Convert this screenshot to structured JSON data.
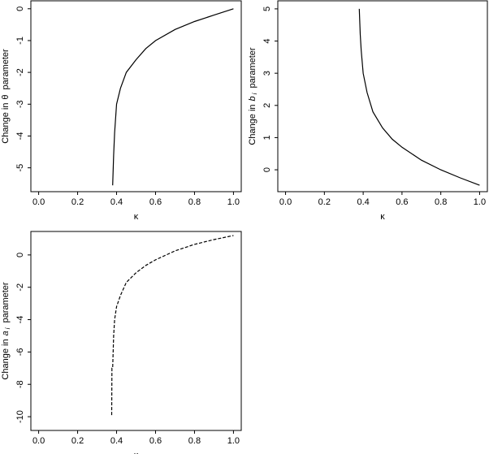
{
  "chart_data": [
    {
      "type": "line",
      "xlabel": "κ",
      "ylabel": {
        "prefix": "Change in",
        "symbol": "θ",
        "suffix": "parameter"
      },
      "x": [
        0.38,
        0.385,
        0.39,
        0.4,
        0.42,
        0.45,
        0.5,
        0.55,
        0.6,
        0.7,
        0.8,
        0.9,
        1.0
      ],
      "values": [
        -5.55,
        -4.6,
        -3.9,
        -3.0,
        -2.5,
        -2.0,
        -1.6,
        -1.25,
        -1.0,
        -0.65,
        -0.4,
        -0.2,
        0
      ],
      "color": "#000000",
      "linestyle": "solid",
      "xlim": [
        -0.04,
        1.04
      ],
      "xticks": [
        {
          "value": 0,
          "label": "0.0"
        },
        0.2,
        0.4,
        0.6,
        0.8,
        {
          "value": 1,
          "label": "1.0"
        }
      ],
      "ylim": [
        -5.75,
        0.25
      ],
      "yticks": [
        -5,
        -4,
        -3,
        -2,
        -1,
        0
      ]
    },
    {
      "type": "line",
      "xlabel": "κ",
      "ylabel": {
        "prefix": "Change in",
        "symbol": "b",
        "subscript": "i",
        "suffix": "parameter"
      },
      "x": [
        0.38,
        0.385,
        0.39,
        0.4,
        0.42,
        0.45,
        0.5,
        0.55,
        0.6,
        0.7,
        0.8,
        0.9,
        1.0
      ],
      "values": [
        5.0,
        4.2,
        3.7,
        3.0,
        2.4,
        1.8,
        1.3,
        0.95,
        0.7,
        0.3,
        0.0,
        -0.25,
        -0.48
      ],
      "color": "#000000",
      "linestyle": "solid",
      "xlim": [
        -0.04,
        1.04
      ],
      "xticks": [
        {
          "value": 0,
          "label": "0.0"
        },
        0.2,
        0.4,
        0.6,
        0.8,
        {
          "value": 1,
          "label": "1.0"
        }
      ],
      "ylim": [
        -0.68,
        5.25
      ],
      "yticks": [
        0,
        1,
        2,
        3,
        4,
        5
      ]
    },
    {
      "type": "line",
      "xlabel": "κ",
      "ylabel": {
        "prefix": "Change in",
        "symbol": "a",
        "subscript": "i",
        "suffix": "parameter"
      },
      "x": [
        0.375,
        0.376,
        0.38,
        0.385,
        0.39,
        0.4,
        0.42,
        0.45,
        0.5,
        0.55,
        0.6,
        0.7,
        0.8,
        0.9,
        1.0
      ],
      "values": [
        -9.9,
        -7,
        -7,
        -5,
        -4,
        -3.2,
        -2.5,
        -1.7,
        -1.1,
        -0.65,
        -0.3,
        0.25,
        0.65,
        0.95,
        1.2
      ],
      "color": "#000000",
      "linestyle": "dashed",
      "xlim": [
        -0.04,
        1.04
      ],
      "xticks": [
        {
          "value": 0,
          "label": "0.0"
        },
        0.2,
        0.4,
        0.6,
        0.8,
        {
          "value": 1,
          "label": "1.0"
        }
      ],
      "ylim": [
        -10.85,
        1.45
      ],
      "yticks": [
        -10,
        -8,
        -6,
        -4,
        -2,
        0
      ]
    }
  ]
}
